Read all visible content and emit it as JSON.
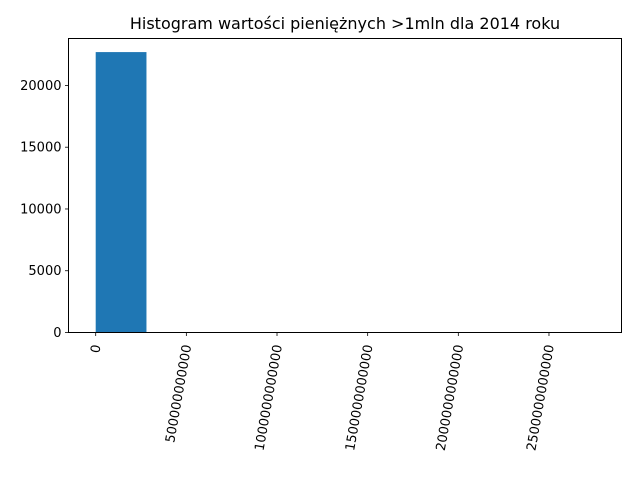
{
  "chart_data": {
    "type": "bar",
    "title": "Histogram wartości pieniężnych >1mln dla 2014 roku",
    "xlabel": "",
    "ylabel": "",
    "bar_color": "#1f77b4",
    "grid": false,
    "legend": "none",
    "xlim": [
      -150000000000,
      2900000000000
    ],
    "ylim": [
      0,
      23800
    ],
    "xticks": [
      {
        "value": 0,
        "label": "0"
      },
      {
        "value": 500000000000,
        "label": "500000000000"
      },
      {
        "value": 1000000000000,
        "label": "1000000000000"
      },
      {
        "value": 1500000000000,
        "label": "1500000000000"
      },
      {
        "value": 2000000000000,
        "label": "2000000000000"
      },
      {
        "value": 2500000000000,
        "label": "2500000000000"
      }
    ],
    "yticks": [
      {
        "value": 0,
        "label": "0"
      },
      {
        "value": 5000,
        "label": "5000"
      },
      {
        "value": 10000,
        "label": "10000"
      },
      {
        "value": 15000,
        "label": "15000"
      },
      {
        "value": 20000,
        "label": "20000"
      }
    ],
    "bins": [
      {
        "x0": 0,
        "x1": 280000000000,
        "count": 22700
      },
      {
        "x0": 280000000000,
        "x1": 560000000000,
        "count": 0
      },
      {
        "x0": 560000000000,
        "x1": 840000000000,
        "count": 0
      },
      {
        "x0": 840000000000,
        "x1": 1120000000000,
        "count": 0
      },
      {
        "x0": 1120000000000,
        "x1": 1400000000000,
        "count": 0
      },
      {
        "x0": 1400000000000,
        "x1": 1680000000000,
        "count": 0
      },
      {
        "x0": 1680000000000,
        "x1": 1960000000000,
        "count": 0
      },
      {
        "x0": 1960000000000,
        "x1": 2240000000000,
        "count": 0
      },
      {
        "x0": 2240000000000,
        "x1": 2520000000000,
        "count": 0
      },
      {
        "x0": 2520000000000,
        "x1": 2800000000000,
        "count": 1
      }
    ]
  }
}
